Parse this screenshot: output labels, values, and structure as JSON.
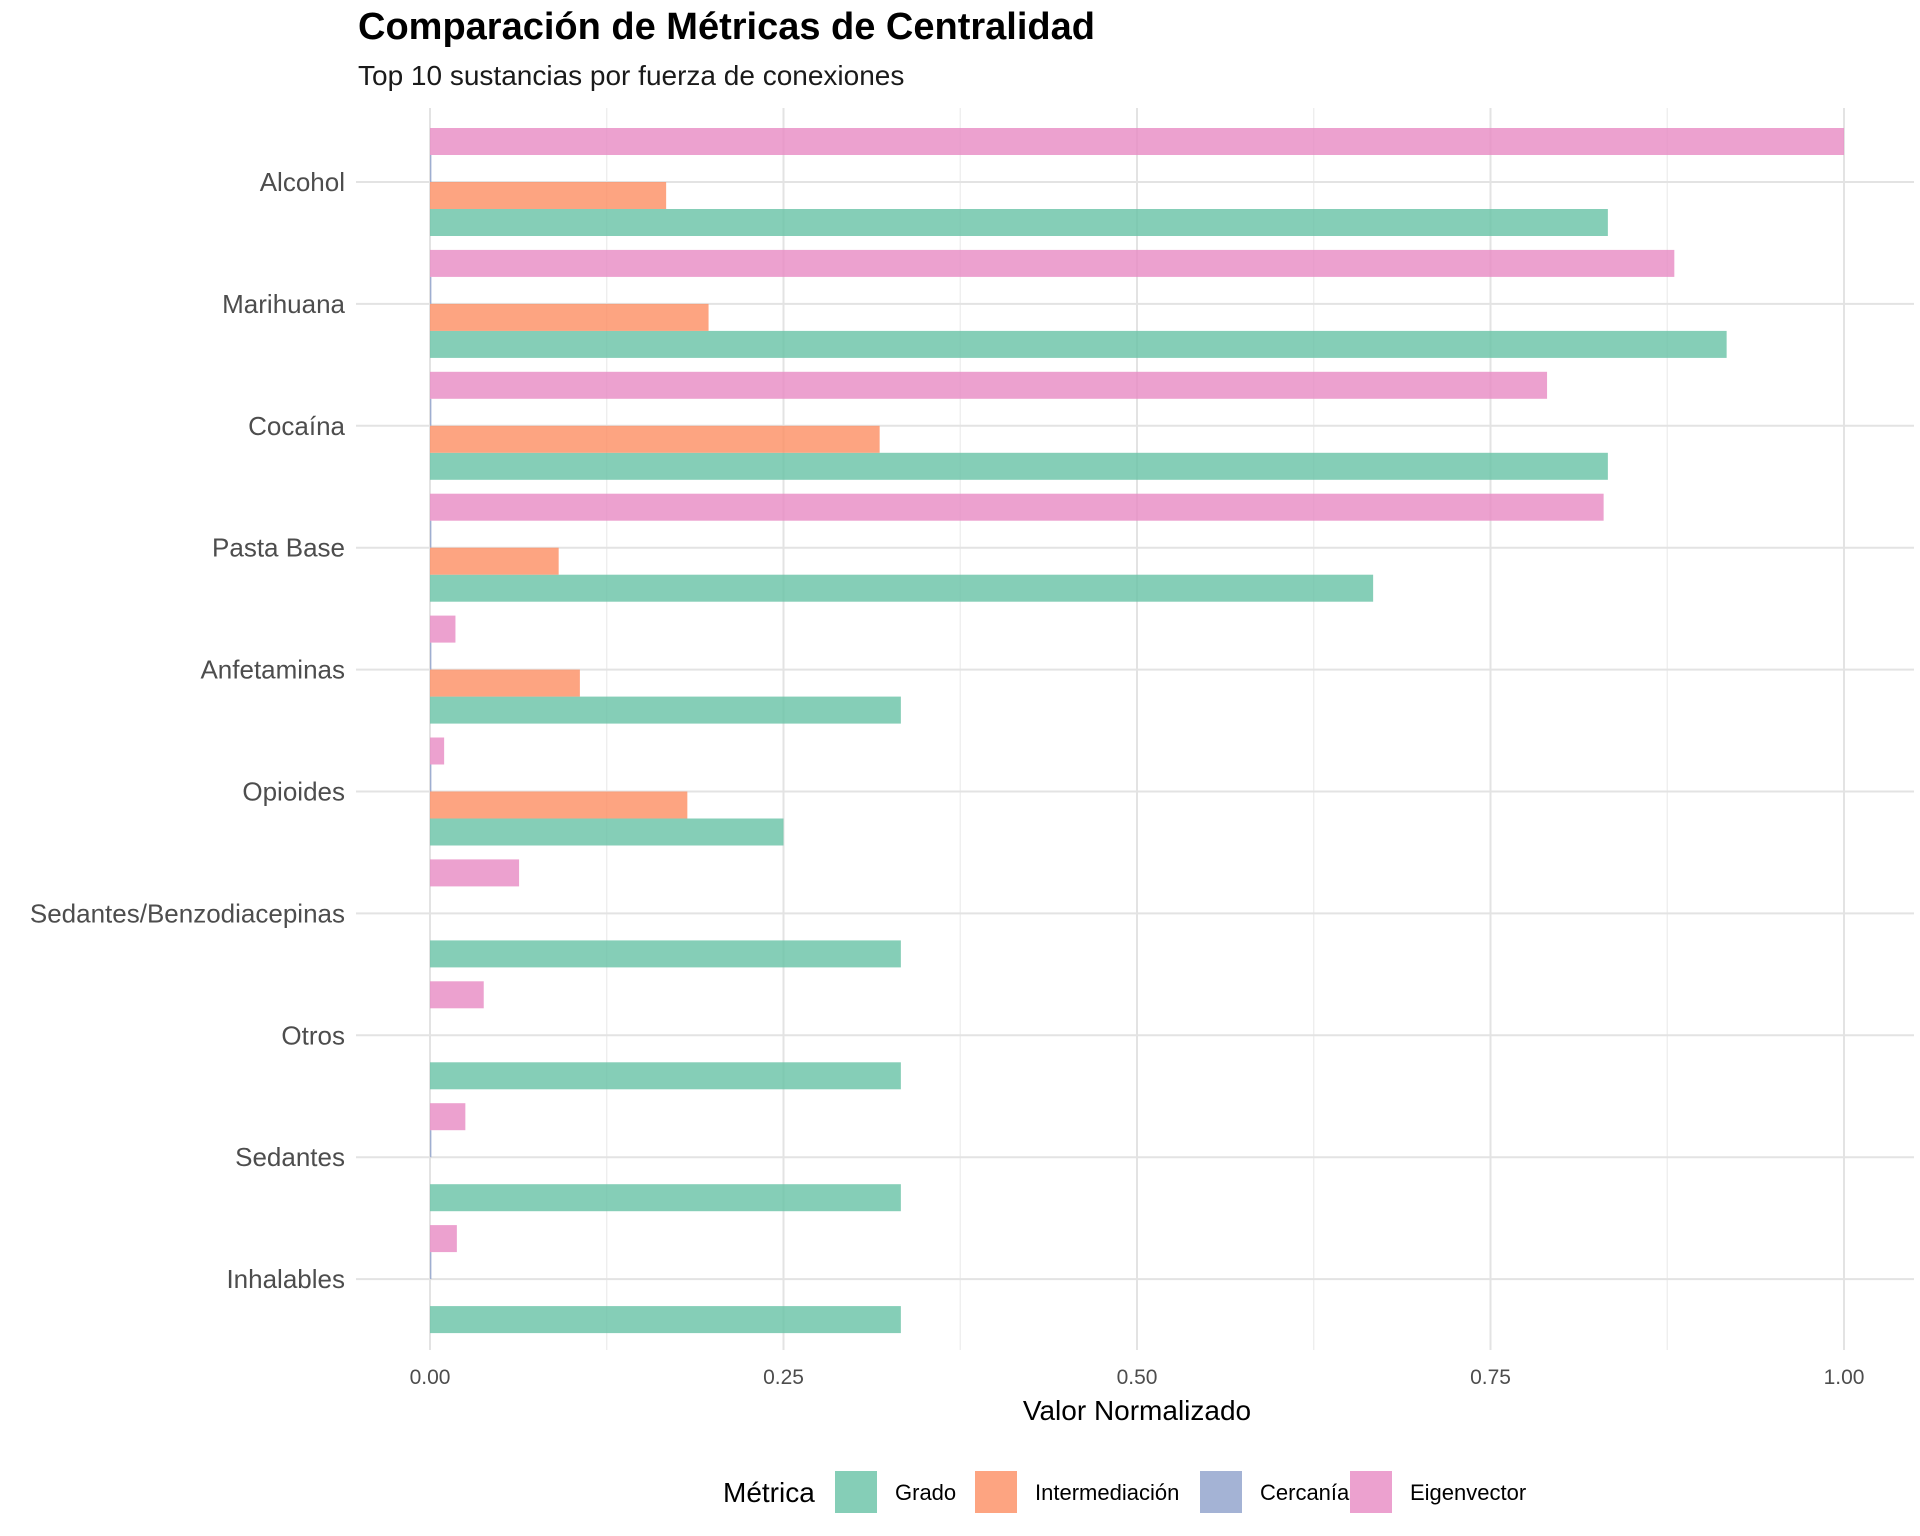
{
  "chart_data": {
    "type": "bar",
    "orientation": "horizontal",
    "title": "Comparación de Métricas de Centralidad",
    "subtitle": "Top 10 sustancias por fuerza de conexiones",
    "xlabel": "Valor Normalizado",
    "ylabel": "",
    "xlim": [
      0,
      1.0
    ],
    "x_ticks": [
      "0.00",
      "0.25",
      "0.50",
      "0.75",
      "1.00"
    ],
    "grid": true,
    "legend_title": "Métrica",
    "legend_position": "bottom",
    "categories": [
      "Alcohol",
      "Marihuana",
      "Cocaína",
      "Pasta Base",
      "Anfetaminas",
      "Opioides",
      "Sedantes/Benzodiacepinas",
      "Otros",
      "Sedantes",
      "Inhalables"
    ],
    "series": [
      {
        "name": "Grado",
        "color": "#66C2A5",
        "values": [
          0.833,
          0.917,
          0.833,
          0.667,
          0.333,
          0.25,
          0.333,
          0.333,
          0.333,
          0.333
        ]
      },
      {
        "name": "Intermediación",
        "color": "#FC8D62",
        "values": [
          0.167,
          0.197,
          0.318,
          0.091,
          0.106,
          0.182,
          0.0,
          0.0,
          0.0,
          0.0
        ]
      },
      {
        "name": "Cercanía",
        "color": "#8DA0CB",
        "values": [
          0.001,
          0.001,
          0.001,
          0.001,
          0.001,
          0.001,
          0.0,
          0.0,
          0.001,
          0.001
        ]
      },
      {
        "name": "Eigenvector",
        "color": "#E78AC3",
        "values": [
          1.0,
          0.88,
          0.79,
          0.83,
          0.018,
          0.01,
          0.063,
          0.038,
          0.025,
          0.019
        ]
      }
    ]
  }
}
